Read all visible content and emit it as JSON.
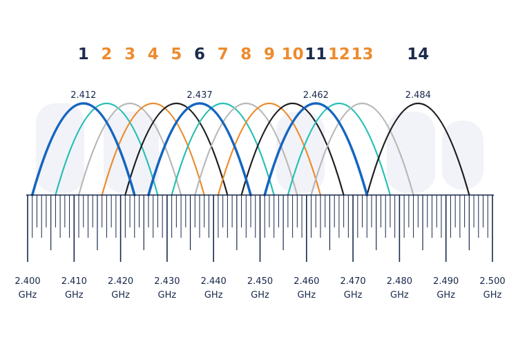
{
  "chart_data": {
    "type": "line",
    "channels": [
      {
        "label": "1",
        "center": 2.412,
        "arc_color": "#1565c0",
        "num_color": "#1c2b4d"
      },
      {
        "label": "2",
        "center": 2.417,
        "arc_color": "#26bfb4",
        "num_color": "#ec8b2d"
      },
      {
        "label": "3",
        "center": 2.422,
        "arc_color": "#b8b8b8",
        "num_color": "#ec8b2d"
      },
      {
        "label": "4",
        "center": 2.427,
        "arc_color": "#ec8b2d",
        "num_color": "#ec8b2d"
      },
      {
        "label": "5",
        "center": 2.432,
        "arc_color": "#1e1e1e",
        "num_color": "#ec8b2d"
      },
      {
        "label": "6",
        "center": 2.437,
        "arc_color": "#1565c0",
        "num_color": "#1c2b4d"
      },
      {
        "label": "7",
        "center": 2.442,
        "arc_color": "#26bfb4",
        "num_color": "#ec8b2d"
      },
      {
        "label": "8",
        "center": 2.447,
        "arc_color": "#b8b8b8",
        "num_color": "#ec8b2d"
      },
      {
        "label": "9",
        "center": 2.452,
        "arc_color": "#ec8b2d",
        "num_color": "#ec8b2d"
      },
      {
        "label": "10",
        "center": 2.457,
        "arc_color": "#1e1e1e",
        "num_color": "#ec8b2d"
      },
      {
        "label": "11",
        "center": 2.462,
        "arc_color": "#1565c0",
        "num_color": "#1c2b4d"
      },
      {
        "label": "12",
        "center": 2.467,
        "arc_color": "#26bfb4",
        "num_color": "#ec8b2d"
      },
      {
        "label": "13",
        "center": 2.472,
        "arc_color": "#b8b8b8",
        "num_color": "#ec8b2d"
      },
      {
        "label": "14",
        "center": 2.484,
        "arc_color": "#1e1e1e",
        "num_color": "#1c2b4d"
      }
    ],
    "channel_width_ghz": 0.022,
    "frequency_labels": [
      {
        "text": "2.412",
        "at": 2.412
      },
      {
        "text": "2.437",
        "at": 2.437
      },
      {
        "text": "2.462",
        "at": 2.462
      },
      {
        "text": "2.484",
        "at": 2.484
      }
    ],
    "x_axis": {
      "range": [
        2.4,
        2.5
      ],
      "unit": "GHz",
      "ticks": [
        "2.400",
        "2.410",
        "2.420",
        "2.430",
        "2.440",
        "2.450",
        "2.460",
        "2.470",
        "2.480",
        "2.490",
        "2.500"
      ],
      "minor_step": 0.001
    },
    "colors": {
      "axis": "#16264a",
      "watermark": "#f1f3f8"
    }
  }
}
